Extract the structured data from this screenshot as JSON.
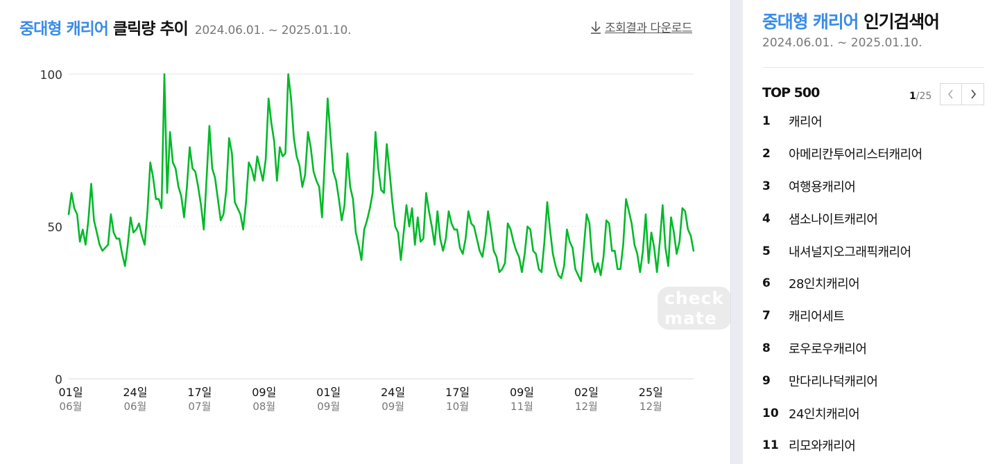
{
  "header": {
    "title_accent": "중대형 캐리어",
    "title_rest": "클릭량 추이",
    "period": "2024.06.01. ~ 2025.01.10.",
    "download_label": "조회결과 다운로드"
  },
  "watermark": "check mate",
  "chart_data": {
    "type": "line",
    "title": "중대형 캐리어 클릭량 추이",
    "xlabel": "",
    "ylabel": "",
    "ylim": [
      0,
      100
    ],
    "yticks": [
      0,
      50,
      100
    ],
    "x_start": "2024-06-01",
    "x_end": "2025-01-10",
    "grid": true,
    "color": "#00b928",
    "xticks": [
      {
        "date": "2024-06-01",
        "day": "01일",
        "month": "06월"
      },
      {
        "date": "2024-06-24",
        "day": "24일",
        "month": "06월"
      },
      {
        "date": "2024-07-17",
        "day": "17일",
        "month": "07월"
      },
      {
        "date": "2024-08-09",
        "day": "09일",
        "month": "08월"
      },
      {
        "date": "2024-09-01",
        "day": "01일",
        "month": "09월"
      },
      {
        "date": "2024-09-24",
        "day": "24일",
        "month": "09월"
      },
      {
        "date": "2024-10-17",
        "day": "17일",
        "month": "10월"
      },
      {
        "date": "2024-11-09",
        "day": "09일",
        "month": "11월"
      },
      {
        "date": "2024-12-02",
        "day": "02일",
        "month": "12월"
      },
      {
        "date": "2024-12-25",
        "day": "25일",
        "month": "12월"
      }
    ],
    "series": [
      {
        "values": [
          54,
          61,
          56,
          54,
          45,
          49,
          44,
          52,
          64,
          52,
          48,
          44,
          42,
          43,
          44,
          54,
          48,
          46,
          46,
          41,
          37,
          44,
          53,
          48,
          49,
          51,
          47,
          44,
          55,
          71,
          66,
          59,
          59,
          56,
          100,
          61,
          81,
          71,
          69,
          63,
          60,
          53,
          63,
          76,
          69,
          68,
          63,
          57,
          49,
          66,
          83,
          69,
          66,
          59,
          52,
          54,
          62,
          79,
          74,
          58,
          56,
          54,
          49,
          58,
          71,
          69,
          65,
          73,
          69,
          65,
          72,
          92,
          84,
          78,
          65,
          76,
          73,
          74,
          100,
          92,
          79,
          73,
          70,
          63,
          67,
          81,
          76,
          68,
          65,
          63,
          53,
          72,
          92,
          80,
          68,
          65,
          59,
          52,
          57,
          74,
          63,
          59,
          48,
          44,
          39,
          49,
          52,
          56,
          61,
          81,
          69,
          62,
          61,
          77,
          68,
          58,
          50,
          48,
          39,
          48,
          57,
          50,
          56,
          44,
          53,
          45,
          46,
          61,
          55,
          50,
          44,
          55,
          46,
          42,
          46,
          55,
          51,
          49,
          49,
          43,
          41,
          46,
          55,
          51,
          50,
          46,
          42,
          40,
          46,
          55,
          49,
          42,
          40,
          35,
          36,
          38,
          51,
          49,
          45,
          42,
          40,
          35,
          41,
          50,
          49,
          42,
          41,
          36,
          35,
          45,
          58,
          49,
          41,
          37,
          34,
          33,
          37,
          49,
          45,
          43,
          36,
          34,
          32,
          43,
          54,
          51,
          39,
          35,
          38,
          34,
          40,
          52,
          51,
          42,
          42,
          36,
          36,
          44,
          59,
          55,
          51,
          44,
          41,
          35,
          42,
          54,
          38,
          48,
          43,
          35,
          45,
          57,
          43,
          37,
          53,
          48,
          41,
          45,
          56,
          55,
          49,
          47,
          42
        ],
        "name": ""
      }
    ]
  },
  "sidebar": {
    "title_accent": "중대형 캐리어",
    "title_rest": "인기검색어",
    "period": "2024.06.01. ~ 2025.01.10.",
    "top_label": "TOP 500",
    "page_current": "1",
    "page_total": "/25",
    "keywords": [
      {
        "rank": "1",
        "keyword": "캐리어"
      },
      {
        "rank": "2",
        "keyword": "아메리칸투어리스터캐리어"
      },
      {
        "rank": "3",
        "keyword": "여행용캐리어"
      },
      {
        "rank": "4",
        "keyword": "샘소나이트캐리어"
      },
      {
        "rank": "5",
        "keyword": "내셔널지오그래픽캐리어"
      },
      {
        "rank": "6",
        "keyword": "28인치캐리어"
      },
      {
        "rank": "7",
        "keyword": "캐리어세트"
      },
      {
        "rank": "8",
        "keyword": "로우로우캐리어"
      },
      {
        "rank": "9",
        "keyword": "만다리나덕캐리어"
      },
      {
        "rank": "10",
        "keyword": "24인치캐리어"
      },
      {
        "rank": "11",
        "keyword": "리모와캐리어"
      }
    ]
  }
}
